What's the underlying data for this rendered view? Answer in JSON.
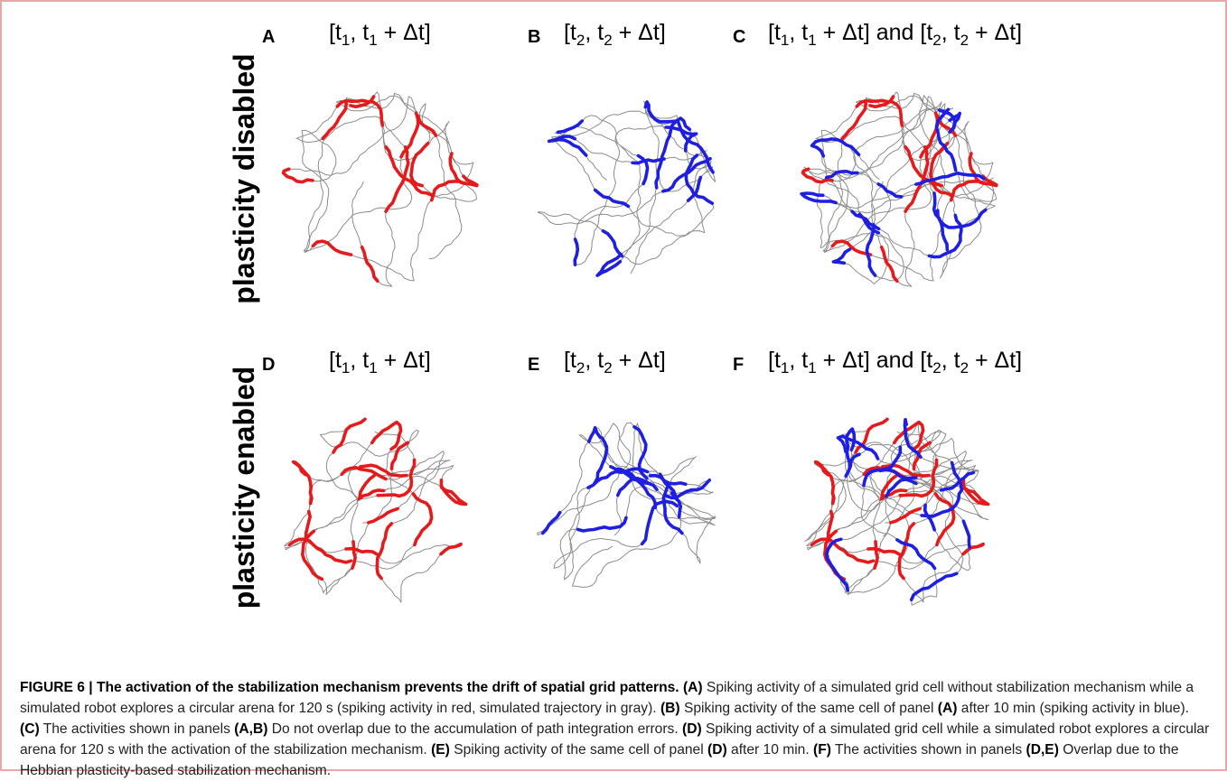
{
  "figure": {
    "rows": [
      {
        "label": "plasticity disabled",
        "panels": [
          {
            "letter": "A",
            "t1": "t",
            "s1": "1",
            "t2": ", t",
            "s2": "1",
            "t3": " + Δt]",
            "tail": ""
          },
          {
            "letter": "B",
            "t1": "t",
            "s1": "2",
            "t2": ", t",
            "s2": "2",
            "t3": " + Δt]",
            "tail": ""
          },
          {
            "letter": "C",
            "t1": "t",
            "s1": "1",
            "t2": ", t",
            "s2": "1",
            "t3": " + Δt] and [t",
            "s3": "2",
            "t4": ", t",
            "s4": "2",
            "t5": " + Δt]"
          }
        ]
      },
      {
        "label": "plasticity enabled",
        "panels": [
          {
            "letter": "D",
            "t1": "t",
            "s1": "1",
            "t2": ", t",
            "s2": "1",
            "t3": " + Δt]",
            "tail": ""
          },
          {
            "letter": "E",
            "t1": "t",
            "s1": "2",
            "t2": ", t",
            "s2": "2",
            "t3": " + Δt]",
            "tail": ""
          },
          {
            "letter": "F",
            "t1": "t",
            "s1": "1",
            "t2": ", t",
            "s2": "1",
            "t3": " + Δt] and [t",
            "s3": "2",
            "t4": ", t",
            "s4": "2",
            "t5": " + Δt]"
          }
        ]
      }
    ],
    "colors": {
      "trajectory": "#8c8c8c",
      "spikes_t1": "#e41a1c",
      "spikes_t2": "#1f1fe0",
      "frame": "#e9a7a9"
    }
  },
  "caption": {
    "lead": "FIGURE 6 | The activation of the stabilization mechanism prevents the drift of spatial grid patterns.",
    "parts": [
      {
        "b": " (A)",
        "t": " Spiking activity of a simulated grid cell without stabilization mechanism while a simulated robot explores a circular arena for 120 s (spiking activity in red, simulated trajectory in gray)."
      },
      {
        "b": " (B)",
        "t": " Spiking activity of the same cell of panel "
      },
      {
        "b": "(A)",
        "t": " after 10 min (spiking activity in blue)."
      },
      {
        "b": " (C)",
        "t": " The activities shown in panels "
      },
      {
        "b": "(A,B)",
        "t": " Do not overlap due to the accumulation of path integration errors."
      },
      {
        "b": " (D)",
        "t": " Spiking activity of a simulated grid cell while a simulated robot explores a circular arena for 120 s with the activation of the stabilization mechanism."
      },
      {
        "b": " (E)",
        "t": " Spiking activity of the same cell of panel "
      },
      {
        "b": "(D)",
        "t": " after 10 min."
      },
      {
        "b": " (F)",
        "t": " The activities shown in panels "
      },
      {
        "b": "(D,E)",
        "t": " Overlap due to the Hebbian plasticity-based stabilization mechanism."
      }
    ]
  }
}
